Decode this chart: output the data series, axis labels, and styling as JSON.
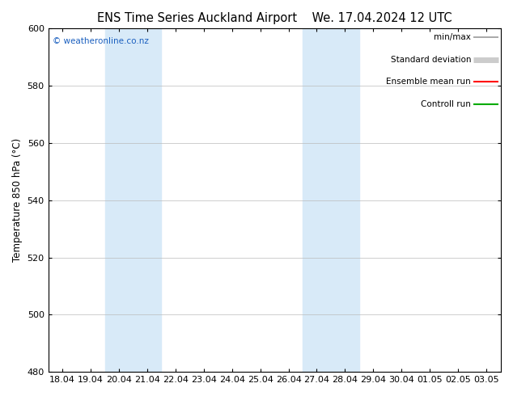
{
  "title_left": "ENS Time Series Auckland Airport",
  "title_right": "We. 17.04.2024 12 UTC",
  "ylabel": "Temperature 850 hPa (°C)",
  "ylim": [
    480,
    600
  ],
  "yticks": [
    480,
    500,
    520,
    540,
    560,
    580,
    600
  ],
  "xtick_labels": [
    "18.04",
    "19.04",
    "20.04",
    "21.04",
    "22.04",
    "23.04",
    "24.04",
    "25.04",
    "26.04",
    "27.04",
    "28.04",
    "29.04",
    "30.04",
    "01.05",
    "02.05",
    "03.05"
  ],
  "shade_bands": [
    {
      "xmin": 2,
      "xmax": 4,
      "color": "#d8eaf8"
    },
    {
      "xmin": 9,
      "xmax": 11,
      "color": "#d8eaf8"
    }
  ],
  "watermark": "© weatheronline.co.nz",
  "watermark_color": "#1a5fbf",
  "background_color": "#ffffff",
  "plot_bg_color": "#ffffff",
  "legend_items": [
    {
      "label": "min/max",
      "color": "#999999",
      "lw": 1.2,
      "style": "line"
    },
    {
      "label": "Standard deviation",
      "color": "#cccccc",
      "lw": 5,
      "style": "line"
    },
    {
      "label": "Ensemble mean run",
      "color": "#ff0000",
      "lw": 1.5,
      "style": "line"
    },
    {
      "label": "Controll run",
      "color": "#00aa00",
      "lw": 1.5,
      "style": "line"
    }
  ],
  "title_fontsize": 10.5,
  "axis_fontsize": 8.5,
  "tick_fontsize": 8,
  "legend_fontsize": 7.5
}
